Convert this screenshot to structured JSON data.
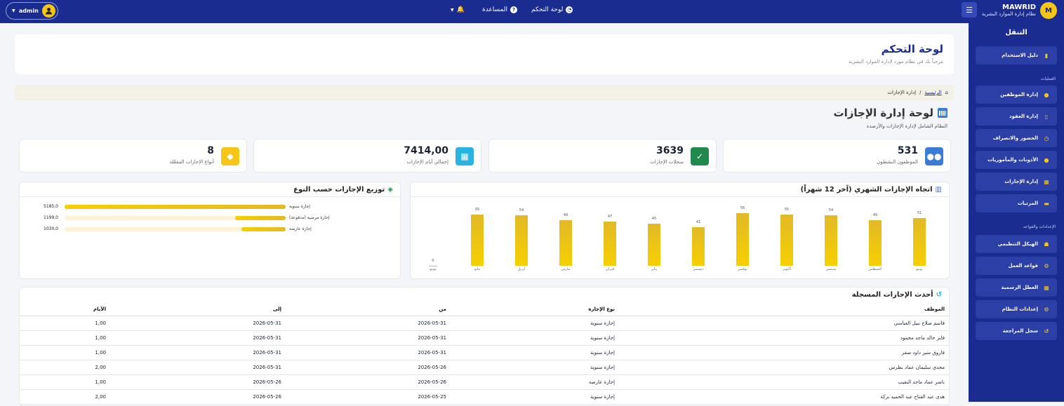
{
  "brand": {
    "logo": "M",
    "name": "MAWRID",
    "subtitle": "نظام إدارة الموارد البشرية"
  },
  "topbar": {
    "dashboard": "لوحة التحكم",
    "help": "المساعدة",
    "user": "admin"
  },
  "sidebar": {
    "title": "التنقل",
    "guide": "دليل الاستخدام",
    "section_ops": "العمليات",
    "ops": [
      "إدارة الموظفين",
      "إدارة العقود",
      "الحضور والانصراف",
      "الأذونات والمأموريات",
      "إدارة الإجازات",
      "المرتبات"
    ],
    "section_settings": "الإعدادات والقواعد",
    "settings": [
      "الهيكل التنظيمي",
      "قواعد العمل",
      "العطل الرسمية",
      "إعدادات النظام",
      "سجل المراجعة"
    ]
  },
  "header": {
    "title": "لوحة التحكم",
    "subtitle": "مرحباً بك في نظام مورد لإدارة الموارد البشرية"
  },
  "breadcrumb": {
    "home": "الرئيسية",
    "current": "إدارة الإجازات"
  },
  "section": {
    "title": "لوحة إدارة الإجازات",
    "subtitle": "النظام الشامل لإدارة الإجازات والأرصدة"
  },
  "stats": [
    {
      "value": "531",
      "label": "الموظفون النشطون",
      "color": "#3a7bd5"
    },
    {
      "value": "3639",
      "label": "سجلات الإجازات",
      "color": "#1f8a4c"
    },
    {
      "value": "7414,00",
      "label": "إجمالي أيام الإجازات",
      "color": "#29b3e0"
    },
    {
      "value": "8",
      "label": "أنواع الإجازات المفعّلة",
      "color": "#f5c518"
    }
  ],
  "trend": {
    "title": "اتجاه الإجازات الشهري (آخر 12 شهراً)"
  },
  "dist": {
    "title": "توزيع الإجازات حسب النوع",
    "rows": [
      {
        "name": "إجازة سنوية",
        "value": "5185,0",
        "frac": 1.0
      },
      {
        "name": "إجازة مرضية (مدفوعة)",
        "value": "1199,0",
        "frac": 0.23
      },
      {
        "name": "إجازة عارضة",
        "value": "1030,0",
        "frac": 0.2
      }
    ]
  },
  "chart_data": [
    {
      "type": "bar",
      "title": "اتجاه الإجازات الشهري (آخر 12 شهراً)",
      "categories": [
        "يونيو",
        "أغسطس",
        "سبتمبر",
        "أكتوبر",
        "نوفمبر",
        "ديسمبر",
        "يناير",
        "فبراير",
        "مارس",
        "أبريل",
        "مايو",
        "يونيو"
      ],
      "values": [
        51,
        49,
        54,
        55,
        56,
        41,
        45,
        47,
        49,
        54,
        55,
        0
      ],
      "ylim": [
        0,
        60
      ]
    },
    {
      "type": "bar",
      "title": "توزيع الإجازات حسب النوع",
      "categories": [
        "إجازة سنوية",
        "إجازة مرضية (مدفوعة)",
        "إجازة عارضة"
      ],
      "values": [
        5185.0,
        1199.0,
        1030.0
      ]
    }
  ],
  "recent": {
    "title": "أحدث الإجازات المسجلة",
    "columns": [
      "الموظف",
      "نوع الإجازة",
      "من",
      "إلى",
      "الأيام"
    ],
    "rows": [
      [
        "قاسم صلاح نبيل العباسي",
        "إجازة سنوية",
        "2026-05-31",
        "2026-05-31",
        "1,00"
      ],
      [
        "فايز خالد ماجد محمود",
        "إجازة سنوية",
        "2026-05-31",
        "2026-05-31",
        "1,00"
      ],
      [
        "فاروق منير داود صقر",
        "إجازة سنوية",
        "2026-05-31",
        "2026-05-31",
        "1,00"
      ],
      [
        "مجدي سليمان عماد بطرس",
        "إجازة سنوية",
        "2026-05-26",
        "2026-05-31",
        "2,00"
      ],
      [
        "ناصر عماد ماجد النقيب",
        "إجازة عارضة",
        "2026-05-26",
        "2026-05-26",
        "1,00"
      ],
      [
        "هدى عبد الفتاح عبد الحميد بركة",
        "إجازة سنوية",
        "2026-05-25",
        "2026-05-26",
        "2,00"
      ]
    ]
  }
}
